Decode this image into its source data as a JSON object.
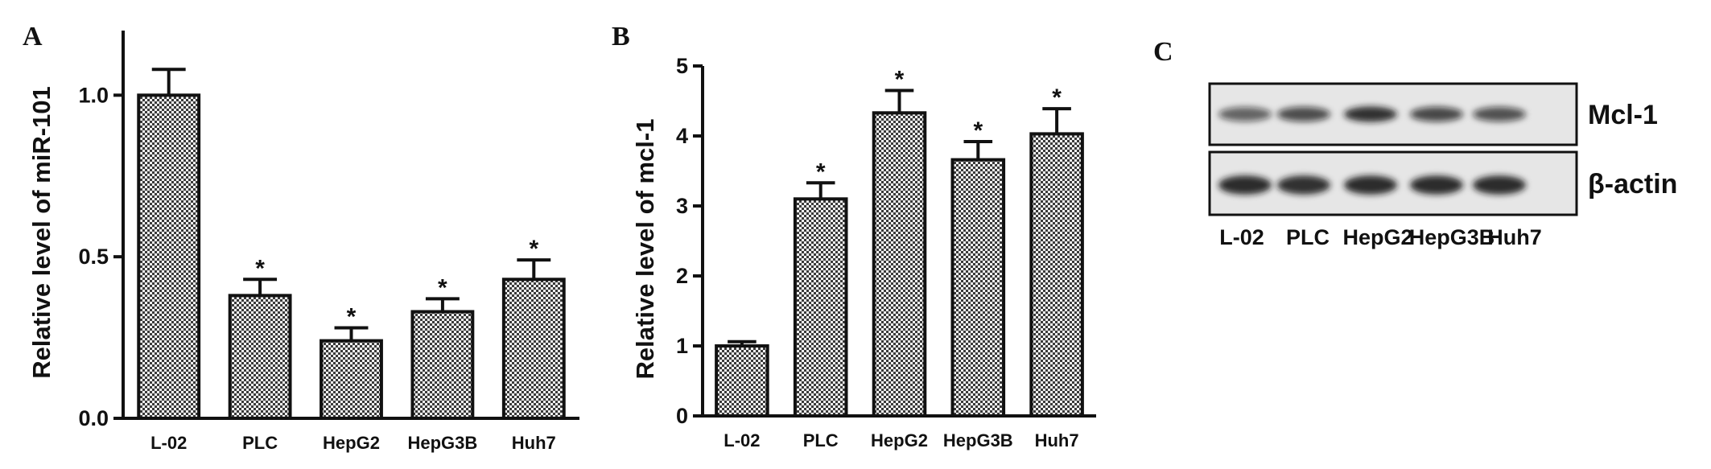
{
  "chart_data": [
    {
      "panel": "A",
      "type": "bar",
      "categories": [
        "L-02",
        "PLC",
        "HepG2",
        "HepG3B",
        "Huh7"
      ],
      "values": [
        1.0,
        0.38,
        0.24,
        0.33,
        0.43
      ],
      "errors": [
        0.08,
        0.05,
        0.04,
        0.04,
        0.06
      ],
      "significance": [
        "",
        "*",
        "*",
        "*",
        "*"
      ],
      "ylabel": "Relative level of miR-101",
      "ylim": [
        0,
        1.2
      ],
      "yticks": [
        0.0,
        0.5,
        1.0
      ],
      "yticklabels": [
        "0.0",
        "0.5",
        "1.0"
      ],
      "grid": false
    },
    {
      "panel": "B",
      "type": "bar",
      "categories": [
        "L-02",
        "PLC",
        "HepG2",
        "HepG3B",
        "Huh7"
      ],
      "values": [
        1.0,
        3.1,
        4.33,
        3.66,
        4.03
      ],
      "errors": [
        0.06,
        0.23,
        0.32,
        0.26,
        0.36
      ],
      "significance": [
        "",
        "*",
        "*",
        "*",
        "*"
      ],
      "ylabel": "Relative level of mcl-1",
      "ylim": [
        0,
        5
      ],
      "yticks": [
        0,
        1,
        2,
        3,
        4,
        5
      ],
      "yticklabels": [
        "0",
        "1",
        "2",
        "3",
        "4",
        "5"
      ],
      "grid": false
    }
  ],
  "blot": {
    "panel": "C",
    "lanes": [
      "L-02",
      "PLC",
      "HepG2",
      "HepG3B",
      "Huh7"
    ],
    "rows": [
      {
        "label": "Mcl-1",
        "intensity": [
          0.62,
          0.72,
          0.88,
          0.74,
          0.7
        ]
      },
      {
        "label": "β-actin",
        "intensity": [
          0.9,
          0.88,
          0.9,
          0.9,
          0.9
        ]
      }
    ]
  }
}
